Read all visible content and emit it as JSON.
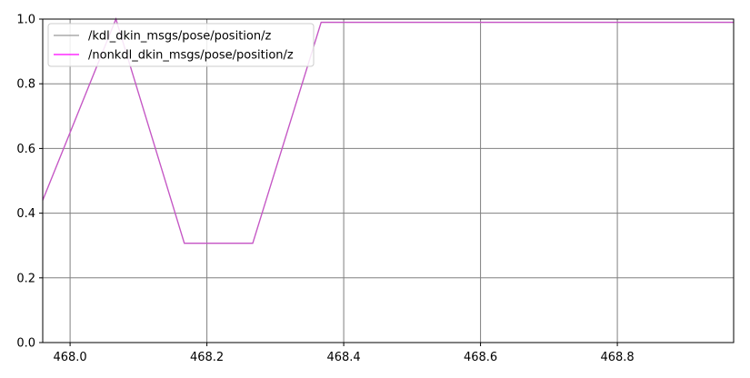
{
  "chart_data": {
    "type": "line",
    "title": "",
    "xlabel": "",
    "ylabel": "",
    "xlim": [
      467.96,
      468.97
    ],
    "ylim": [
      0.0,
      1.0
    ],
    "grid": true,
    "legend_position": "top-left",
    "x_ticks": [
      "468.0",
      "468.2",
      "468.4",
      "468.6",
      "468.8"
    ],
    "x_tick_values": [
      468.0,
      468.2,
      468.4,
      468.6,
      468.8
    ],
    "y_ticks": [
      "0.0",
      "0.2",
      "0.4",
      "0.6",
      "0.8",
      "1.0"
    ],
    "y_tick_values": [
      0.0,
      0.2,
      0.4,
      0.6,
      0.8,
      1.0
    ],
    "series": [
      {
        "name": "/kdl_dkin_msgs/pose/position/z",
        "color": "#999999",
        "points": [
          [
            467.96,
            0.44
          ],
          [
            468.067,
            1.0
          ],
          [
            468.167,
            0.307
          ],
          [
            468.267,
            0.307
          ],
          [
            468.367,
            0.99
          ],
          [
            468.97,
            0.99
          ]
        ]
      },
      {
        "name": "/nonkdl_dkin_msgs/pose/position/z",
        "color": "#ff00ff",
        "points": [
          [
            467.96,
            0.44
          ],
          [
            468.067,
            1.0
          ],
          [
            468.167,
            0.307
          ],
          [
            468.267,
            0.307
          ],
          [
            468.367,
            0.99
          ],
          [
            468.97,
            0.99
          ]
        ]
      }
    ]
  }
}
